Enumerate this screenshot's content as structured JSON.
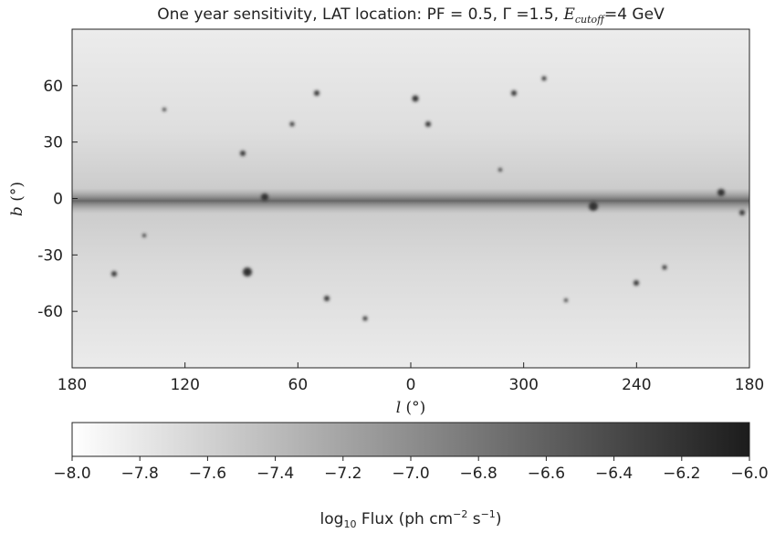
{
  "chart_data": {
    "type": "skymap",
    "title": [
      "One year sensitivity, LAT location: PF = 0.5, Γ =1.5, ",
      "E",
      "cutoff",
      "=4 GeV"
    ],
    "x_label": [
      "l",
      " (°)"
    ],
    "y_label": [
      "b",
      " (°)"
    ],
    "xlim": [
      180,
      -180
    ],
    "xticks": [
      180,
      120,
      60,
      0,
      {
        "value": -60,
        "label": "300"
      },
      {
        "value": -120,
        "label": "240"
      },
      {
        "value": -180,
        "label": "180"
      }
    ],
    "ylim": [
      -90,
      90
    ],
    "yticks": [
      -60,
      -30,
      0,
      30,
      60
    ],
    "colormap": [
      "#ffffff",
      "#1c1c1c"
    ],
    "clim": [
      -8,
      -6
    ],
    "cticks": [
      {
        "value": -8,
        "label": "−8.0"
      },
      {
        "value": -7.8,
        "label": "−7.8"
      },
      {
        "value": -7.6,
        "label": "−7.6"
      },
      {
        "value": -7.4,
        "label": "−7.4"
      },
      {
        "value": -7.2,
        "label": "−7.2"
      },
      {
        "value": -7,
        "label": "−7.0"
      },
      {
        "value": -6.8,
        "label": "−6.8"
      },
      {
        "value": -6.6,
        "label": "−6.6"
      },
      {
        "value": -6.4,
        "label": "−6.4"
      },
      {
        "value": -6.2,
        "label": "−6.2"
      },
      {
        "value": -6,
        "label": "−6.0"
      }
    ],
    "colorbar_label": [
      "log",
      "10",
      " Flux (ph cm",
      "−2",
      " s",
      "−1",
      ")"
    ]
  }
}
